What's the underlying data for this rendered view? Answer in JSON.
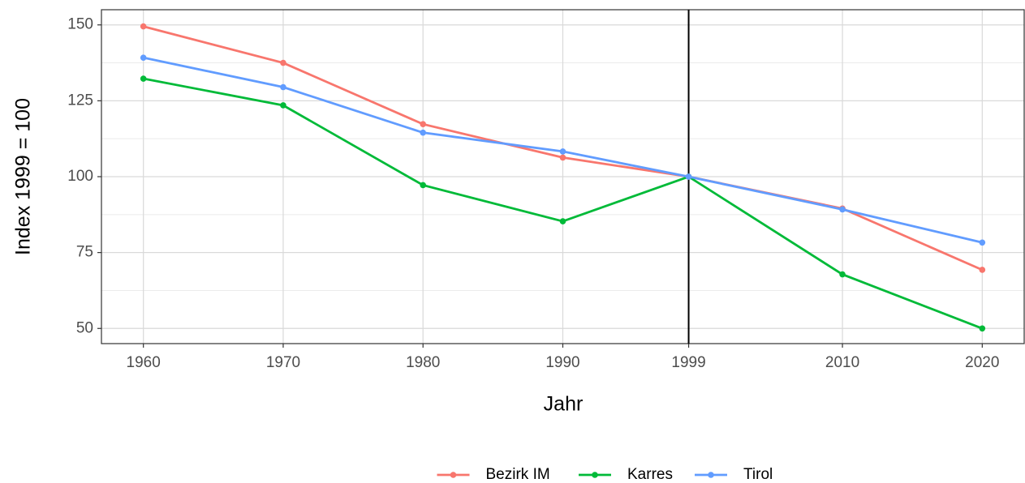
{
  "chart_data": {
    "type": "line",
    "x_label": "Jahr",
    "y_label": "Index 1999 = 100",
    "x": [
      1960,
      1970,
      1980,
      1990,
      1999,
      2010,
      2020
    ],
    "series": [
      {
        "name": "Bezirk IM",
        "color": "#F8766D",
        "values": [
          149.5,
          137.5,
          117.3,
          106.3,
          100,
          89.5,
          69.3
        ]
      },
      {
        "name": "Karres",
        "color": "#00BA38",
        "values": [
          132.3,
          123.5,
          97.2,
          85.3,
          100,
          67.8,
          50
        ]
      },
      {
        "name": "Tirol",
        "color": "#619CFF",
        "values": [
          139.2,
          129.5,
          114.5,
          108.3,
          100,
          89.2,
          78.3
        ]
      }
    ],
    "xlim": [
      1957,
      2023
    ],
    "xticks": [
      1960,
      1970,
      1980,
      1990,
      1999,
      2010,
      2020
    ],
    "ylim": [
      45,
      155
    ],
    "yticks": [
      50,
      75,
      100,
      125,
      150
    ],
    "yminorticks": [
      62.5,
      87.5,
      112.5,
      137.5
    ],
    "vline": 1999,
    "grid": true,
    "legend": "bottom"
  }
}
